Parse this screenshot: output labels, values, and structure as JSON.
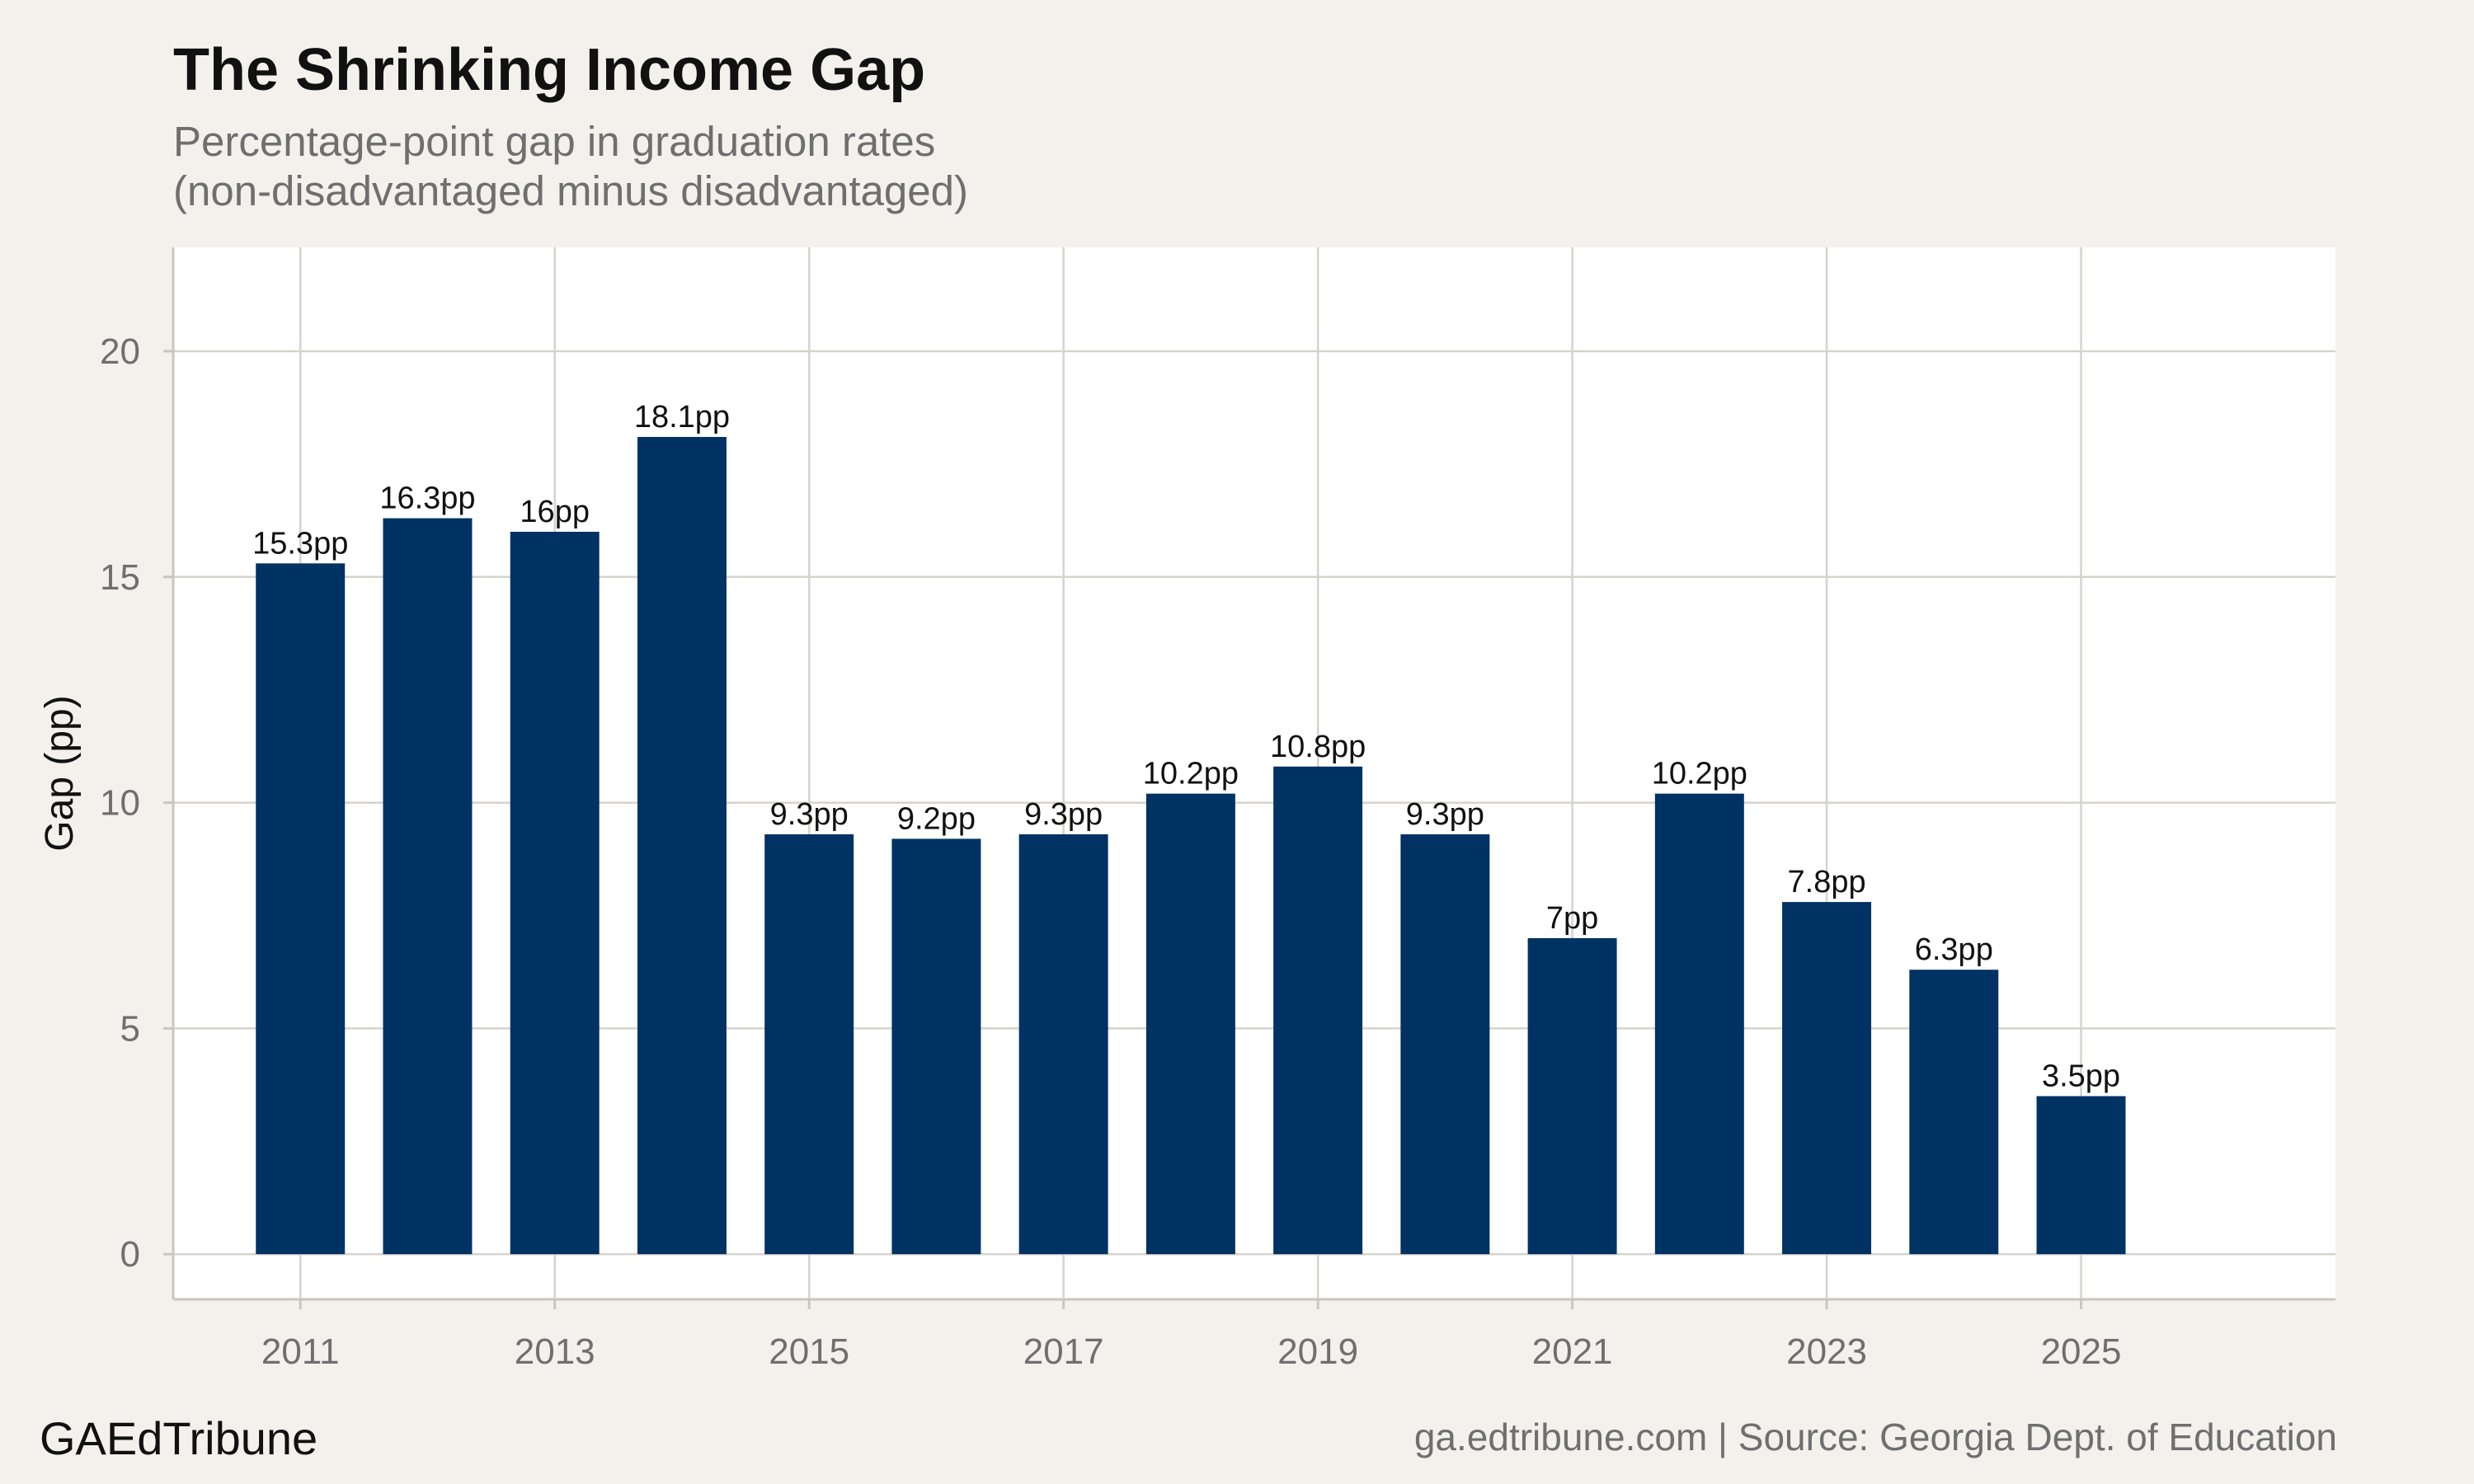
{
  "header": {
    "title": "The Shrinking Income Gap",
    "subtitle_line1": "Percentage-point gap in graduation rates",
    "subtitle_line2": "(non-disadvantaged minus disadvantaged)"
  },
  "footer": {
    "brand": "GAEdTribune",
    "source": "ga.edtribune.com | Source: Georgia Dept. of Education"
  },
  "chart_data": {
    "type": "bar",
    "title": "The Shrinking Income Gap",
    "ylabel": "Gap (pp)",
    "xlim": [
      2010,
      2027
    ],
    "ylim": [
      -1,
      22.3
    ],
    "x_ticks": [
      2011,
      2013,
      2015,
      2017,
      2019,
      2021,
      2023,
      2025
    ],
    "y_ticks": [
      0,
      5,
      10,
      15,
      20
    ],
    "x": [
      2011,
      2012,
      2013,
      2014,
      2015,
      2016,
      2017,
      2018,
      2019,
      2020,
      2021,
      2022,
      2023,
      2024,
      2025
    ],
    "values": [
      15.3,
      16.3,
      16.0,
      18.1,
      9.3,
      9.2,
      9.3,
      10.2,
      10.8,
      9.3,
      7.0,
      10.2,
      7.8,
      6.3,
      3.5
    ],
    "data_labels": [
      "15.3pp",
      "16.3pp",
      "16pp",
      "18.1pp",
      "9.3pp",
      "9.2pp",
      "9.3pp",
      "10.2pp",
      "10.8pp",
      "9.3pp",
      "7pp",
      "10.2pp",
      "7.8pp",
      "6.3pp",
      "3.5pp"
    ],
    "bar_color": "#003263",
    "grid": true,
    "background": "#ffffff"
  }
}
